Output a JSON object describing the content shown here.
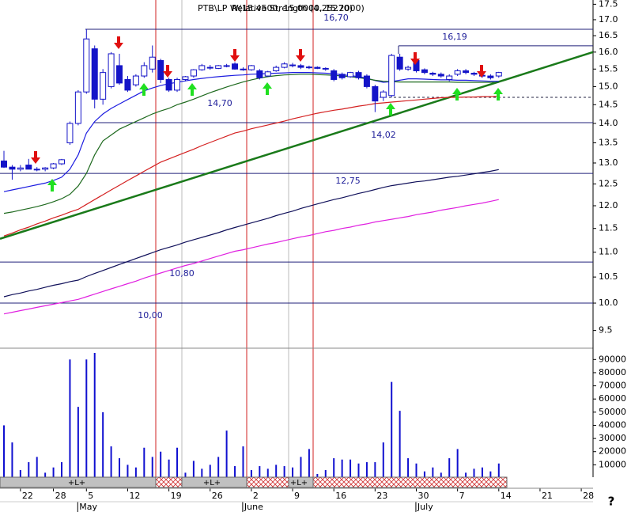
{
  "chart_data": {
    "type": "candlestick",
    "title": "PTB\\LP W(15.4500, 15.0000, 15.2000)",
    "subtitle": "Relative Strength (4.25270)",
    "categories": [
      null,
      null,
      "22",
      null,
      null,
      null,
      "28",
      null,
      null,
      null,
      "5",
      null,
      null,
      null,
      null,
      "12",
      null,
      null,
      null,
      null,
      "19",
      null,
      null,
      null,
      null,
      "26",
      null,
      null,
      null,
      null,
      "2",
      null,
      null,
      null,
      null,
      "9",
      null,
      null,
      null,
      null,
      "16",
      null,
      null,
      null,
      null,
      "23",
      null,
      null,
      null,
      null,
      "30",
      null,
      null,
      null,
      null,
      "7",
      null,
      null,
      null,
      null,
      "14",
      null,
      null,
      null,
      null,
      "21",
      null,
      null,
      null,
      null,
      "28",
      null
    ],
    "months": [
      null,
      null,
      null,
      null,
      null,
      null,
      null,
      null,
      null,
      null,
      "May",
      null,
      null,
      null,
      null,
      null,
      null,
      null,
      null,
      null,
      null,
      null,
      null,
      null,
      null,
      null,
      null,
      null,
      null,
      null,
      "June",
      null,
      null,
      null,
      null,
      null,
      null,
      null,
      null,
      null,
      null,
      null,
      null,
      null,
      null,
      null,
      null,
      null,
      null,
      null,
      null,
      "July",
      null,
      null,
      null,
      null,
      null,
      null,
      null,
      null,
      null,
      null,
      null,
      null,
      null,
      null,
      null,
      null,
      null,
      null,
      null,
      null
    ],
    "open": [
      13.05,
      12.9,
      12.85,
      12.95,
      12.85,
      12.85,
      12.88,
      12.98,
      13.5,
      14.0,
      14.85,
      16.1,
      14.65,
      15.0,
      15.6,
      15.2,
      15.05,
      15.3,
      15.5,
      15.75,
      15.2,
      14.9,
      15.2,
      15.3,
      15.48,
      15.55,
      15.52,
      15.58,
      15.65,
      15.5,
      15.48,
      15.45,
      15.3,
      15.45,
      15.55,
      15.6,
      15.6,
      15.55,
      15.55,
      15.52,
      15.45,
      15.35,
      15.28,
      15.4,
      15.3,
      15.0,
      14.7,
      14.75,
      15.85,
      15.5,
      15.75,
      15.48,
      15.38,
      15.35,
      15.2,
      15.35,
      15.45,
      15.38,
      15.32,
      15.3,
      15.3,
      null,
      null,
      null,
      null,
      null,
      null,
      null,
      null,
      null,
      null,
      null
    ],
    "high": [
      13.3,
      12.95,
      12.95,
      13.1,
      12.9,
      12.9,
      13.0,
      13.1,
      14.05,
      14.9,
      16.7,
      16.2,
      15.5,
      16.0,
      15.95,
      15.3,
      15.35,
      15.7,
      16.2,
      15.8,
      15.25,
      15.25,
      15.3,
      15.5,
      15.65,
      15.62,
      15.62,
      15.65,
      15.7,
      15.55,
      15.62,
      15.5,
      15.45,
      15.6,
      15.7,
      15.68,
      15.65,
      15.6,
      15.58,
      15.55,
      15.5,
      15.4,
      15.42,
      15.45,
      15.35,
      15.05,
      14.9,
      15.95,
      15.95,
      15.6,
      15.8,
      15.52,
      15.42,
      15.4,
      15.35,
      15.5,
      15.5,
      15.42,
      15.38,
      15.35,
      15.42,
      null,
      null,
      null,
      null,
      null,
      null,
      null,
      null,
      null,
      null,
      null
    ],
    "low": [
      12.88,
      12.6,
      12.8,
      12.85,
      12.8,
      12.8,
      12.85,
      12.95,
      13.45,
      13.95,
      14.8,
      14.4,
      14.5,
      14.95,
      15.05,
      14.85,
      15.0,
      15.25,
      15.4,
      15.1,
      14.85,
      14.85,
      15.15,
      15.25,
      15.45,
      15.48,
      15.5,
      15.55,
      15.48,
      15.45,
      15.45,
      15.2,
      15.28,
      15.42,
      15.52,
      15.55,
      15.5,
      15.5,
      15.5,
      15.45,
      15.15,
      15.2,
      15.25,
      15.2,
      14.95,
      14.3,
      14.6,
      14.7,
      15.45,
      15.45,
      15.4,
      15.35,
      15.3,
      15.25,
      15.15,
      15.3,
      15.35,
      15.3,
      15.25,
      15.2,
      15.25,
      null,
      null,
      null,
      null,
      null,
      null,
      null,
      null,
      null,
      null,
      null
    ],
    "close": [
      12.9,
      12.85,
      12.88,
      12.85,
      12.85,
      12.88,
      12.98,
      13.08,
      14.0,
      14.85,
      16.4,
      14.65,
      15.4,
      15.95,
      15.1,
      14.9,
      15.3,
      15.6,
      15.85,
      15.2,
      14.9,
      15.2,
      15.28,
      15.48,
      15.6,
      15.55,
      15.6,
      15.6,
      15.5,
      15.5,
      15.6,
      15.25,
      15.42,
      15.55,
      15.65,
      15.62,
      15.55,
      15.56,
      15.52,
      15.5,
      15.2,
      15.25,
      15.4,
      15.25,
      15.0,
      14.6,
      14.85,
      15.9,
      15.5,
      15.55,
      15.45,
      15.4,
      15.35,
      15.3,
      15.3,
      15.45,
      15.4,
      15.35,
      15.3,
      15.25,
      15.4,
      null,
      null,
      null,
      null,
      null,
      null,
      null,
      null,
      null,
      null,
      null
    ],
    "color": "#1414c8",
    "ylim": [
      9.3,
      17.64
    ],
    "log_scale": true,
    "yticks": [
      9.5,
      {
        "value": 10,
        "label": "10.0"
      },
      10.5,
      {
        "value": 11,
        "label": "11.0"
      },
      11.5,
      {
        "value": 12,
        "label": "12.0"
      },
      12.5,
      {
        "value": 13,
        "label": "13.0"
      },
      13.5,
      {
        "value": 14,
        "label": "14.0"
      },
      14.5,
      {
        "value": 15,
        "label": "15.0"
      },
      15.5,
      {
        "value": 16,
        "label": "16.0"
      },
      16.5,
      {
        "value": 17,
        "label": "17.0"
      },
      17.5
    ],
    "moving_averages": [
      {
        "color": "#1c1ce0",
        "values": [
          12.32,
          12.36,
          12.4,
          12.44,
          12.48,
          12.52,
          12.58,
          12.66,
          12.85,
          13.2,
          13.75,
          14.05,
          14.25,
          14.4,
          14.52,
          14.64,
          14.76,
          14.88,
          14.96,
          15.03,
          15.08,
          15.12,
          15.16,
          15.2,
          15.23,
          15.26,
          15.28,
          15.3,
          15.32,
          15.33,
          15.35,
          15.36,
          15.37,
          15.38,
          15.39,
          15.4,
          15.4,
          15.4,
          15.39,
          15.38,
          15.36,
          15.34,
          15.31,
          15.28,
          15.24,
          15.17,
          15.12,
          15.14,
          15.18,
          15.22,
          15.22,
          15.21,
          15.2,
          15.19,
          15.19,
          15.18,
          15.18,
          15.17,
          15.16,
          15.15,
          15.15,
          null,
          null,
          null,
          null,
          null,
          null,
          null,
          null,
          null,
          null,
          null
        ]
      },
      {
        "color": "#1f6a1f",
        "values": [
          11.83,
          11.86,
          11.9,
          11.94,
          11.98,
          12.03,
          12.09,
          12.16,
          12.26,
          12.45,
          12.75,
          13.2,
          13.55,
          13.7,
          13.85,
          13.95,
          14.05,
          14.15,
          14.25,
          14.33,
          14.4,
          14.5,
          14.57,
          14.65,
          14.74,
          14.83,
          14.91,
          14.99,
          15.06,
          15.13,
          15.19,
          15.24,
          15.28,
          15.31,
          15.33,
          15.34,
          15.35,
          15.35,
          15.34,
          15.33,
          15.32,
          15.3,
          15.28,
          15.25,
          15.22,
          15.18,
          15.15,
          15.14,
          15.13,
          15.13,
          15.13,
          15.13,
          15.13,
          15.13,
          15.13,
          15.12,
          15.12,
          15.12,
          15.12,
          15.12,
          15.12,
          null,
          null,
          null,
          null,
          null,
          null,
          null,
          null,
          null,
          null,
          null
        ]
      },
      {
        "color": "#d42020",
        "values": [
          11.34,
          11.4,
          11.47,
          11.53,
          11.6,
          11.66,
          11.73,
          11.79,
          11.86,
          11.92,
          12.03,
          12.14,
          12.25,
          12.36,
          12.47,
          12.58,
          12.69,
          12.8,
          12.91,
          13.02,
          13.1,
          13.18,
          13.26,
          13.34,
          13.43,
          13.51,
          13.59,
          13.67,
          13.75,
          13.8,
          13.86,
          13.91,
          13.96,
          14.01,
          14.06,
          14.12,
          14.17,
          14.22,
          14.27,
          14.31,
          14.35,
          14.38,
          14.42,
          14.46,
          14.49,
          14.53,
          14.55,
          14.57,
          14.59,
          14.61,
          14.63,
          14.65,
          14.67,
          14.69,
          14.7,
          14.7,
          14.71,
          14.71,
          14.72,
          14.72,
          14.73,
          null,
          null,
          null,
          null,
          null,
          null,
          null,
          null,
          null,
          null,
          null
        ]
      },
      {
        "color": "#10105a",
        "values": [
          10.12,
          10.16,
          10.19,
          10.23,
          10.26,
          10.3,
          10.34,
          10.37,
          10.41,
          10.44,
          10.51,
          10.57,
          10.63,
          10.69,
          10.75,
          10.81,
          10.87,
          10.93,
          10.99,
          11.05,
          11.1,
          11.15,
          11.21,
          11.26,
          11.31,
          11.36,
          11.41,
          11.47,
          11.52,
          11.57,
          11.62,
          11.67,
          11.72,
          11.78,
          11.83,
          11.88,
          11.94,
          11.99,
          12.04,
          12.09,
          12.14,
          12.18,
          12.23,
          12.28,
          12.32,
          12.37,
          12.42,
          12.46,
          12.49,
          12.52,
          12.55,
          12.57,
          12.6,
          12.63,
          12.66,
          12.68,
          12.71,
          12.74,
          12.77,
          12.8,
          12.84,
          null,
          null,
          null,
          null,
          null,
          null,
          null,
          null,
          null,
          null,
          null
        ]
      },
      {
        "color": "#e020e0",
        "values": [
          9.8,
          9.83,
          9.86,
          9.89,
          9.92,
          9.95,
          9.98,
          10.01,
          10.04,
          10.07,
          10.12,
          10.17,
          10.22,
          10.27,
          10.32,
          10.37,
          10.42,
          10.48,
          10.53,
          10.58,
          10.63,
          10.68,
          10.73,
          10.77,
          10.82,
          10.87,
          10.92,
          10.97,
          11.02,
          11.05,
          11.09,
          11.13,
          11.17,
          11.2,
          11.24,
          11.28,
          11.32,
          11.35,
          11.39,
          11.43,
          11.46,
          11.5,
          11.53,
          11.57,
          11.6,
          11.64,
          11.67,
          11.7,
          11.73,
          11.76,
          11.8,
          11.83,
          11.86,
          11.9,
          11.93,
          11.96,
          12.0,
          12.03,
          12.06,
          12.1,
          12.14,
          null,
          null,
          null,
          null,
          null,
          null,
          null,
          null,
          null,
          null,
          null
        ]
      }
    ],
    "levels": [
      {
        "value": 16.7,
        "label": "16,70"
      },
      {
        "value": 16.19,
        "label": "16,19"
      },
      {
        "value": 14.7,
        "label": "14,70"
      },
      {
        "value": 14.02,
        "label": "14,02"
      },
      {
        "value": 12.75,
        "label": "12,75"
      },
      {
        "value": 10.8,
        "label": "10,80"
      },
      {
        "value": 10.0,
        "label": "10,00"
      }
    ],
    "trendline": {
      "color": "#1a7a1a",
      "values": [
        11.28,
        16.0
      ]
    },
    "volume": {
      "color": "#1010d0",
      "ylim": [
        0,
        98000
      ],
      "yticks": [
        10000,
        20000,
        30000,
        40000,
        50000,
        60000,
        70000,
        80000,
        90000
      ],
      "values": [
        40000,
        27000,
        6000,
        12000,
        16000,
        4000,
        8000,
        12000,
        90000,
        54000,
        90000,
        95000,
        50000,
        24000,
        15000,
        10000,
        8000,
        23000,
        16000,
        20000,
        14000,
        23000,
        4000,
        13000,
        7000,
        10000,
        16000,
        36000,
        9000,
        24000,
        6000,
        9000,
        7000,
        10000,
        9000,
        8000,
        16000,
        22000,
        3000,
        6000,
        15000,
        14000,
        14000,
        11000,
        12000,
        12000,
        27000,
        73000,
        51000,
        15000,
        11000,
        5000,
        8000,
        4000,
        15000,
        22000,
        4000,
        7000,
        8000,
        5000,
        11000,
        null,
        null,
        null,
        null,
        null,
        null,
        null,
        null,
        null,
        null,
        null
      ]
    },
    "status_strip": [
      "+L+",
      "+L+",
      "+L+"
    ],
    "help": "?"
  }
}
